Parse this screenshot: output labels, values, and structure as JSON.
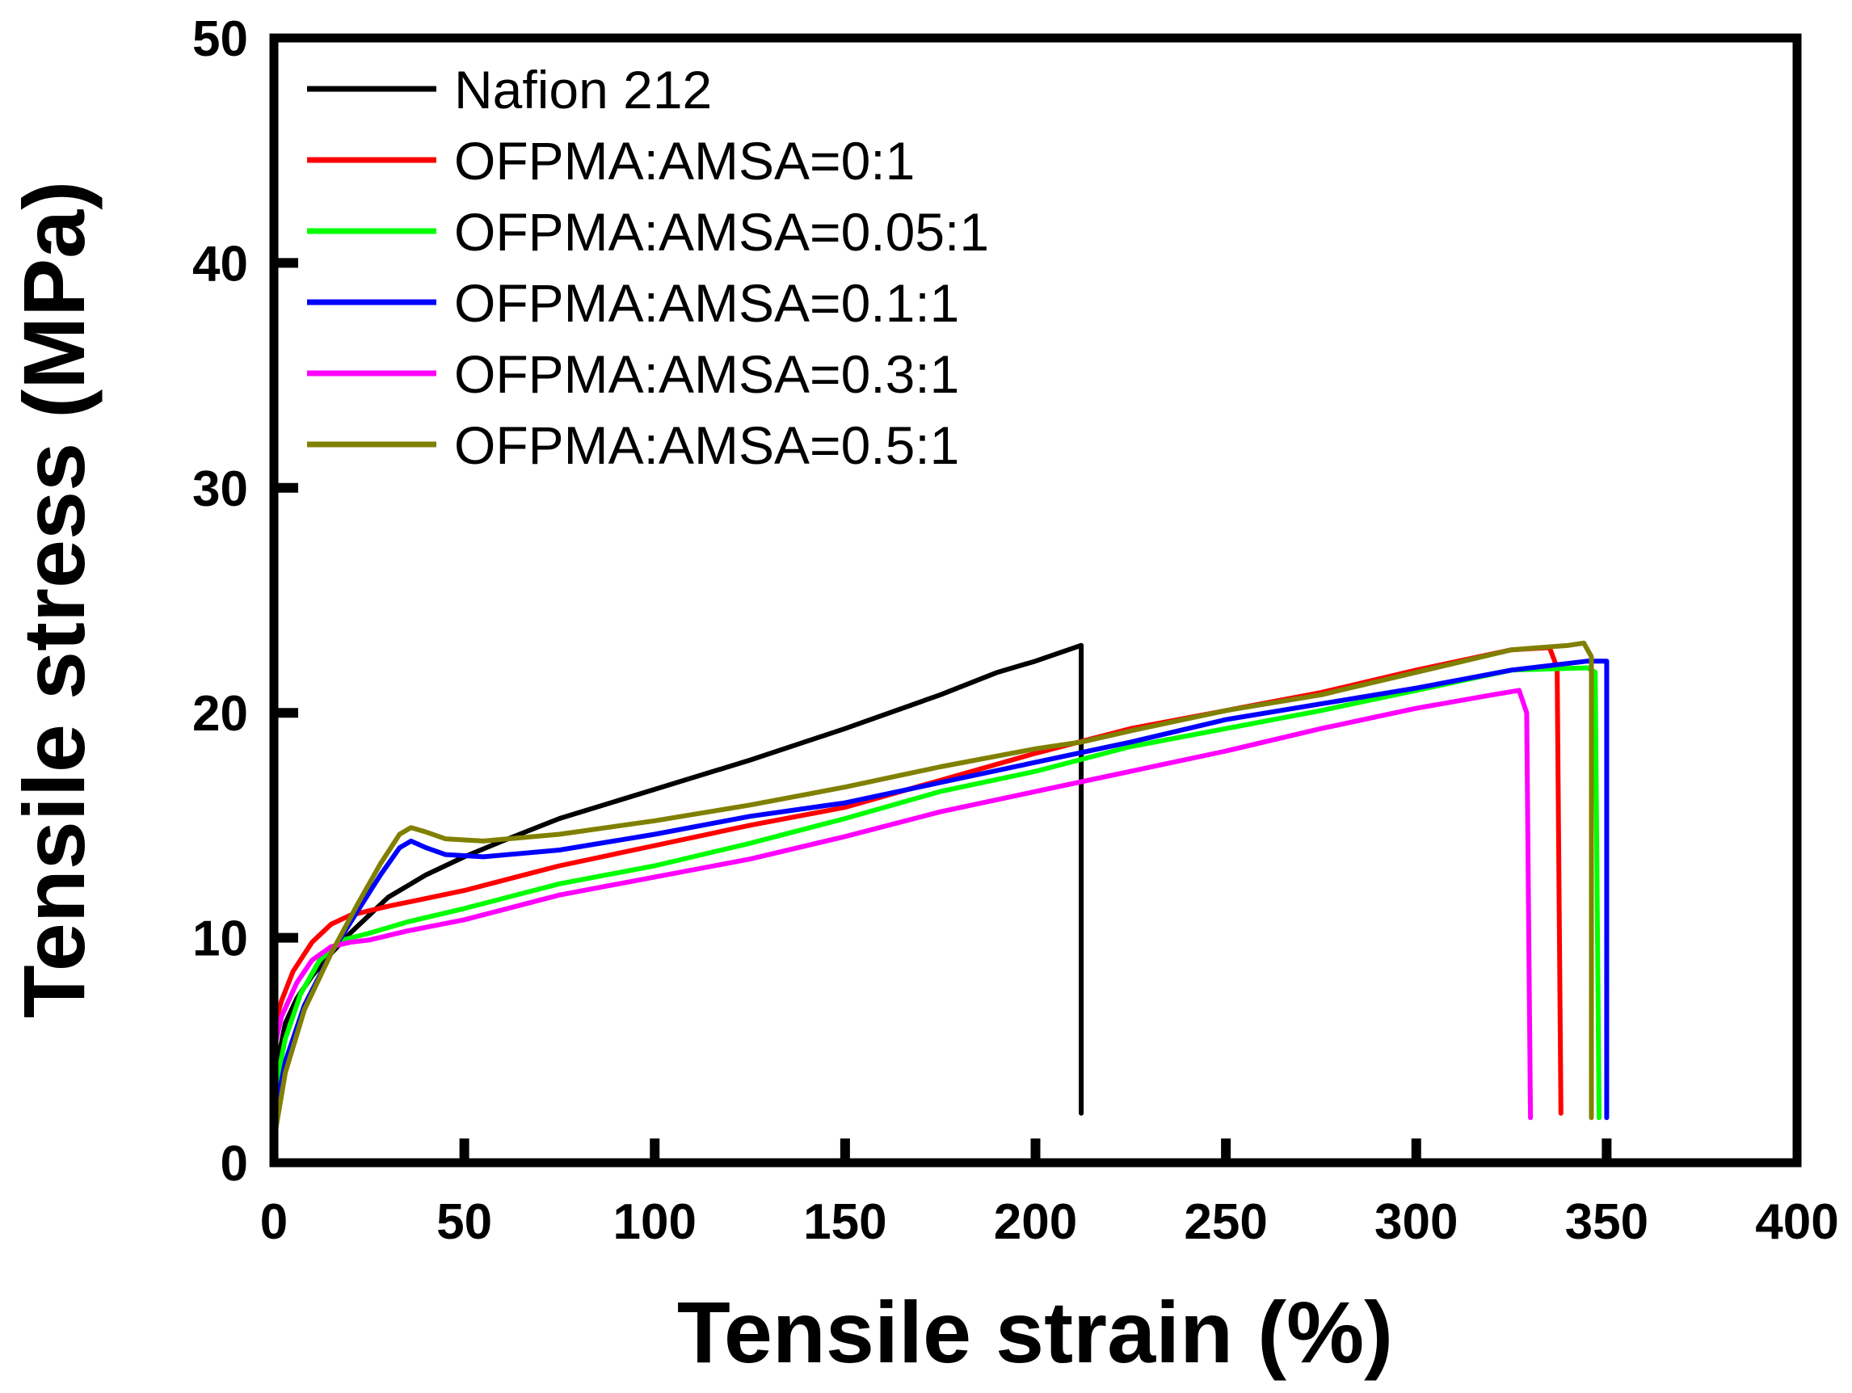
{
  "chart_data": {
    "type": "line",
    "title": "",
    "xlabel": "Tensile strain (%)",
    "ylabel": "Tensile stress (MPa)",
    "xlim": [
      0,
      400
    ],
    "ylim": [
      0,
      50
    ],
    "xticks": [
      0,
      50,
      100,
      150,
      200,
      250,
      300,
      350,
      400
    ],
    "yticks": [
      0,
      10,
      20,
      30,
      40,
      50
    ],
    "xtick_labels": [
      "0",
      "50",
      "100",
      "150",
      "200",
      "250",
      "300",
      "350",
      "400"
    ],
    "ytick_labels": [
      "0",
      "10",
      "20",
      "30",
      "40",
      "50"
    ],
    "grid": false,
    "legend_position": "top-left",
    "series": [
      {
        "name": "Nafion 212",
        "color": "#000000",
        "x": [
          0,
          1,
          3,
          6,
          10,
          15,
          20,
          25,
          30,
          40,
          50,
          60,
          75,
          100,
          125,
          150,
          175,
          190,
          200,
          212,
          212
        ],
        "y": [
          1.5,
          4.5,
          6.2,
          7.3,
          8.3,
          9.3,
          10.2,
          11.0,
          11.8,
          12.8,
          13.6,
          14.3,
          15.3,
          16.6,
          17.9,
          19.3,
          20.8,
          21.8,
          22.3,
          23.0,
          2.2
        ]
      },
      {
        "name": "OFPMA:AMSA=0:1",
        "color": "#ff0000",
        "x": [
          0,
          2,
          5,
          10,
          15,
          20,
          30,
          50,
          75,
          100,
          125,
          150,
          175,
          200,
          225,
          250,
          275,
          300,
          325,
          335,
          337,
          338
        ],
        "y": [
          6.0,
          7.2,
          8.5,
          9.8,
          10.6,
          11.0,
          11.4,
          12.1,
          13.2,
          14.1,
          15.0,
          15.8,
          17.0,
          18.2,
          19.3,
          20.1,
          20.9,
          21.9,
          22.8,
          22.9,
          22.0,
          2.2
        ]
      },
      {
        "name": "OFPMA:AMSA=0.05:1",
        "color": "#00ff00",
        "x": [
          0,
          3,
          7,
          12,
          18,
          25,
          35,
          50,
          75,
          100,
          125,
          150,
          175,
          200,
          225,
          250,
          275,
          300,
          325,
          345,
          347,
          348
        ],
        "y": [
          3.0,
          5.5,
          7.5,
          9.0,
          9.9,
          10.2,
          10.7,
          11.3,
          12.4,
          13.2,
          14.2,
          15.3,
          16.5,
          17.4,
          18.5,
          19.3,
          20.1,
          21.0,
          21.9,
          22.0,
          21.8,
          2.0
        ]
      },
      {
        "name": "OFPMA:AMSA=0.1:1",
        "color": "#0000ff",
        "x": [
          0,
          3,
          8,
          15,
          22,
          28,
          33,
          36,
          40,
          45,
          55,
          75,
          100,
          125,
          150,
          175,
          200,
          225,
          250,
          275,
          300,
          325,
          345,
          350,
          350
        ],
        "y": [
          2.0,
          4.5,
          7.0,
          9.3,
          11.2,
          12.8,
          14.0,
          14.3,
          14.0,
          13.7,
          13.6,
          13.9,
          14.6,
          15.4,
          16.0,
          16.9,
          17.8,
          18.7,
          19.7,
          20.4,
          21.1,
          21.9,
          22.3,
          22.3,
          2.0
        ]
      },
      {
        "name": "OFPMA:AMSA=0.3:1",
        "color": "#ff00ff",
        "x": [
          0,
          2,
          6,
          10,
          15,
          20,
          25,
          35,
          50,
          75,
          100,
          125,
          150,
          175,
          200,
          225,
          250,
          275,
          300,
          320,
          327,
          329,
          330
        ],
        "y": [
          5.0,
          6.5,
          8.0,
          9.0,
          9.6,
          9.8,
          9.9,
          10.3,
          10.8,
          11.9,
          12.7,
          13.5,
          14.5,
          15.6,
          16.5,
          17.4,
          18.3,
          19.3,
          20.2,
          20.8,
          21.0,
          20.0,
          2.0
        ]
      },
      {
        "name": "OFPMA:AMSA=0.5:1",
        "color": "#808000",
        "x": [
          0,
          3,
          8,
          15,
          22,
          28,
          33,
          36,
          40,
          45,
          55,
          75,
          100,
          125,
          150,
          175,
          200,
          212,
          225,
          250,
          275,
          300,
          325,
          340,
          344,
          346,
          346
        ],
        "y": [
          1.0,
          4.0,
          6.8,
          9.3,
          11.5,
          13.3,
          14.6,
          14.9,
          14.7,
          14.4,
          14.3,
          14.6,
          15.2,
          15.9,
          16.7,
          17.6,
          18.4,
          18.7,
          19.2,
          20.1,
          20.8,
          21.8,
          22.8,
          23.0,
          23.1,
          22.5,
          2.0
        ]
      }
    ]
  }
}
